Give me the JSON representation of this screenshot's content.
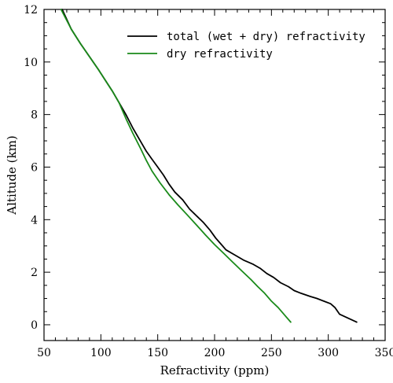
{
  "chart_data": {
    "type": "line",
    "title": "",
    "xlabel": "Refractivity (ppm)",
    "ylabel": "Altitude (km)",
    "xlim": [
      50,
      350
    ],
    "ylim": [
      -0.6,
      12
    ],
    "x_ticks": [
      50,
      100,
      150,
      200,
      250,
      300,
      350
    ],
    "y_ticks": [
      0,
      2,
      4,
      6,
      8,
      10,
      12
    ],
    "grid": false,
    "legend_position": "top-right",
    "series": [
      {
        "name": "total (wet + dry) refractivity",
        "color": "#000000",
        "points": [
          [
            325,
            0.1
          ],
          [
            315,
            0.3
          ],
          [
            310,
            0.4
          ],
          [
            306,
            0.65
          ],
          [
            302,
            0.8
          ],
          [
            296,
            0.9
          ],
          [
            290,
            1.0
          ],
          [
            284,
            1.08
          ],
          [
            276,
            1.2
          ],
          [
            270,
            1.3
          ],
          [
            265,
            1.45
          ],
          [
            258,
            1.6
          ],
          [
            252,
            1.8
          ],
          [
            246,
            1.95
          ],
          [
            240,
            2.15
          ],
          [
            234,
            2.3
          ],
          [
            226,
            2.45
          ],
          [
            218,
            2.65
          ],
          [
            210,
            2.85
          ],
          [
            206,
            3.05
          ],
          [
            201,
            3.3
          ],
          [
            196,
            3.6
          ],
          [
            190,
            3.9
          ],
          [
            184,
            4.15
          ],
          [
            178,
            4.4
          ],
          [
            172,
            4.75
          ],
          [
            165,
            5.05
          ],
          [
            160,
            5.35
          ],
          [
            155,
            5.7
          ],
          [
            150,
            6.0
          ],
          [
            145,
            6.3
          ],
          [
            140,
            6.6
          ],
          [
            134,
            7.05
          ],
          [
            128,
            7.5
          ],
          [
            122,
            8.0
          ],
          [
            116,
            8.45
          ],
          [
            110,
            8.9
          ],
          [
            104,
            9.3
          ],
          [
            98,
            9.7
          ],
          [
            90,
            10.2
          ],
          [
            82,
            10.7
          ],
          [
            74,
            11.25
          ],
          [
            66,
            12.0
          ]
        ]
      },
      {
        "name": "dry refractivity",
        "color": "#1a8a1a",
        "points": [
          [
            267,
            0.1
          ],
          [
            262,
            0.35
          ],
          [
            256,
            0.65
          ],
          [
            250,
            0.9
          ],
          [
            244,
            1.2
          ],
          [
            238,
            1.45
          ],
          [
            232,
            1.72
          ],
          [
            224,
            2.05
          ],
          [
            216,
            2.38
          ],
          [
            208,
            2.72
          ],
          [
            200,
            3.05
          ],
          [
            192,
            3.42
          ],
          [
            184,
            3.8
          ],
          [
            176,
            4.18
          ],
          [
            168,
            4.55
          ],
          [
            160,
            4.95
          ],
          [
            152,
            5.4
          ],
          [
            145,
            5.85
          ],
          [
            140,
            6.25
          ],
          [
            135,
            6.7
          ],
          [
            128,
            7.3
          ],
          [
            122,
            7.85
          ],
          [
            116,
            8.45
          ],
          [
            110,
            8.9
          ],
          [
            104,
            9.3
          ],
          [
            98,
            9.7
          ],
          [
            90,
            10.2
          ],
          [
            82,
            10.7
          ],
          [
            74,
            11.25
          ],
          [
            65,
            12.0
          ]
        ]
      }
    ]
  }
}
